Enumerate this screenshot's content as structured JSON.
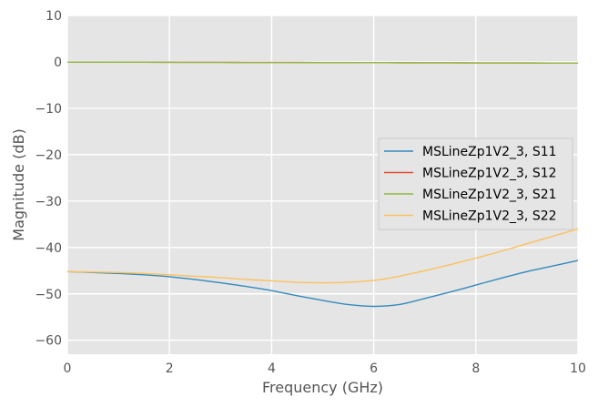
{
  "chart_data": {
    "type": "line",
    "title": "",
    "xlabel": "Frequency (GHz)",
    "ylabel": "Magnitude (dB)",
    "xlim": [
      0,
      10
    ],
    "ylim": [
      -63,
      10
    ],
    "xticks": [
      0,
      2,
      4,
      6,
      8,
      10
    ],
    "yticks": [
      10,
      0,
      -10,
      -20,
      -30,
      -40,
      -50,
      -60
    ],
    "xtick_labels": [
      "0",
      "2",
      "4",
      "6",
      "8",
      "10"
    ],
    "ytick_labels": [
      "10",
      "0",
      "−10",
      "−20",
      "−30",
      "−40",
      "−50",
      "−60"
    ],
    "grid": true,
    "background": "#e5e5e5",
    "legend_position": "center-right",
    "x": [
      0,
      0.5,
      1,
      1.5,
      2,
      2.5,
      3,
      3.5,
      4,
      4.5,
      5,
      5.5,
      6,
      6.5,
      7,
      7.5,
      8,
      8.5,
      9,
      9.5,
      10
    ],
    "series": [
      {
        "name": "MSLineZp1V2_3, S11",
        "color": "#348abd",
        "values": [
          -45.2,
          -45.4,
          -45.6,
          -45.9,
          -46.3,
          -46.9,
          -47.6,
          -48.4,
          -49.3,
          -50.4,
          -51.4,
          -52.3,
          -52.7,
          -52.3,
          -51.0,
          -49.6,
          -48.1,
          -46.6,
          -45.2,
          -44.0,
          -42.8
        ]
      },
      {
        "name": "MSLineZp1V2_3, S12",
        "color": "#e24a33",
        "values": [
          -0.05,
          -0.05,
          -0.06,
          -0.07,
          -0.08,
          -0.09,
          -0.1,
          -0.11,
          -0.12,
          -0.13,
          -0.14,
          -0.15,
          -0.17,
          -0.18,
          -0.19,
          -0.2,
          -0.21,
          -0.22,
          -0.23,
          -0.24,
          -0.25
        ]
      },
      {
        "name": "MSLineZp1V2_3, S21",
        "color": "#8eba42",
        "values": [
          -0.05,
          -0.05,
          -0.06,
          -0.07,
          -0.08,
          -0.09,
          -0.1,
          -0.11,
          -0.12,
          -0.13,
          -0.14,
          -0.15,
          -0.17,
          -0.18,
          -0.19,
          -0.2,
          -0.21,
          -0.22,
          -0.23,
          -0.24,
          -0.25
        ]
      },
      {
        "name": "MSLineZp1V2_3, S22",
        "color": "#fbc15e",
        "values": [
          -45.2,
          -45.3,
          -45.4,
          -45.6,
          -45.9,
          -46.2,
          -46.5,
          -46.9,
          -47.2,
          -47.5,
          -47.6,
          -47.5,
          -47.1,
          -46.2,
          -45.0,
          -43.7,
          -42.3,
          -40.8,
          -39.2,
          -37.6,
          -36.0
        ]
      }
    ]
  }
}
